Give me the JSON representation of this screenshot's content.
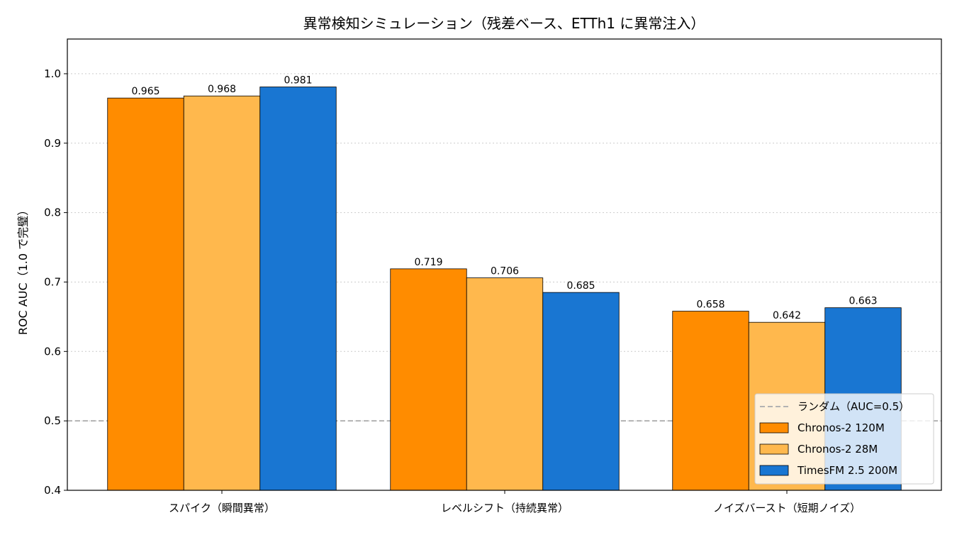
{
  "chart_data": {
    "type": "bar",
    "title": "異常検知シミュレーション（残差ベース、ETTh1 に異常注入）",
    "xlabel": "",
    "ylabel": "ROC AUC（1.0 で完璧）",
    "ylim": [
      0.4,
      1.05
    ],
    "yticks": [
      0.4,
      0.5,
      0.6,
      0.7,
      0.8,
      0.9,
      1.0
    ],
    "ytick_labels": [
      "0.4",
      "0.5",
      "0.6",
      "0.7",
      "0.8",
      "0.9",
      "1.0"
    ],
    "categories": [
      "スパイク（瞬間異常）",
      "レベルシフト（持続異常）",
      "ノイズバースト（短期ノイズ）"
    ],
    "series": [
      {
        "name": "Chronos-2 120M",
        "color": "#ff8c00",
        "values": [
          0.965,
          0.719,
          0.658
        ],
        "labels": [
          "0.965",
          "0.719",
          "0.658"
        ]
      },
      {
        "name": "Chronos-2 28M",
        "color": "#ffb84d",
        "values": [
          0.968,
          0.706,
          0.642
        ],
        "labels": [
          "0.968",
          "0.706",
          "0.642"
        ]
      },
      {
        "name": "TimesFM 2.5 200M",
        "color": "#1976d2",
        "values": [
          0.981,
          0.685,
          0.663
        ],
        "labels": [
          "0.981",
          "0.685",
          "0.663"
        ]
      }
    ],
    "reference_line": {
      "name": "ランダム（AUC=0.5）",
      "value": 0.5,
      "color": "#b3b3b3",
      "style": "dashed"
    },
    "grid": "horizontal-dotted",
    "legend_position": "lower-right"
  }
}
